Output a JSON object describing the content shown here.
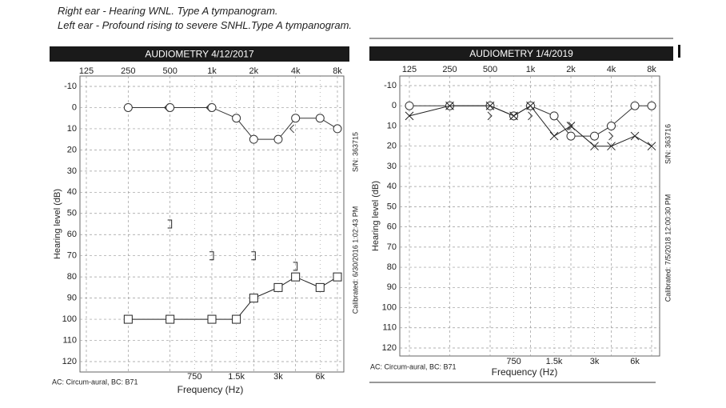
{
  "header": {
    "lines": [
      "Right ear - Hearing WNL. Type A tympanogram.",
      "Left ear - Profound rising to severe SNHL.Type A tympanogram."
    ]
  },
  "chart_data": [
    {
      "type": "line",
      "title": "AUDIOMETRY 4/12/2017",
      "x_label": "Frequency (Hz)",
      "y_label": "Hearing level (dB)",
      "footnote": "AC: Circum-aural, BC: B71",
      "serial": "S/N: 363715",
      "calibration": "Calibrated: 6/30/2016 1:02:43 PM",
      "xscale": "log",
      "xlim": [
        125,
        8000
      ],
      "ylim": [
        -10,
        120
      ],
      "y_inverted": true,
      "grid": true,
      "xticks": [
        125,
        250,
        500,
        {
          "value": 1000,
          "label": "1k"
        },
        {
          "value": 2000,
          "label": "2k"
        },
        {
          "value": 4000,
          "label": "4k"
        },
        {
          "value": 8000,
          "label": "8k"
        }
      ],
      "xticks_minor": [
        750,
        {
          "value": 1500,
          "label": "1.5k"
        },
        {
          "value": 3000,
          "label": "3k"
        },
        {
          "value": 6000,
          "label": "6k"
        }
      ],
      "yticks": [
        -10,
        0,
        10,
        20,
        30,
        40,
        50,
        60,
        70,
        80,
        90,
        100,
        110,
        120
      ],
      "series": [
        {
          "marker": "circle",
          "line": true,
          "color": "#333",
          "x": [
            250,
            500,
            1000,
            1500,
            2000,
            3000,
            4000,
            6000,
            8000
          ],
          "values": [
            0,
            0,
            0,
            5,
            15,
            15,
            5,
            5,
            10
          ]
        },
        {
          "marker": "square",
          "line": true,
          "color": "#222",
          "x": [
            250,
            500,
            1000,
            1500,
            2000,
            3000,
            4000,
            6000,
            8000
          ],
          "values": [
            100,
            100,
            100,
            100,
            90,
            85,
            80,
            85,
            80
          ]
        },
        {
          "marker": "bracket-right",
          "line": false,
          "color": "#222",
          "x": [
            500,
            1000,
            2000,
            4000
          ],
          "values": [
            55,
            70,
            70,
            75
          ]
        },
        {
          "marker": "angle-left",
          "line": false,
          "color": "#333",
          "x": [
            500,
            1000,
            4000
          ],
          "values": [
            0,
            0,
            10
          ]
        }
      ]
    },
    {
      "type": "line",
      "title": "AUDIOMETRY 1/4/2019",
      "x_label": "Frequency (Hz)",
      "y_label": "Hearing level (dB)",
      "footnote": "AC: Circum-aural, BC: B71",
      "serial": "S/N: 363716",
      "calibration": "Calibrated: 7/5/2018 12:00:30 PM",
      "xscale": "log",
      "xlim": [
        125,
        8000
      ],
      "ylim": [
        -10,
        120
      ],
      "y_inverted": true,
      "grid": true,
      "xticks": [
        125,
        250,
        500,
        {
          "value": 1000,
          "label": "1k"
        },
        {
          "value": 2000,
          "label": "2k"
        },
        {
          "value": 4000,
          "label": "4k"
        },
        {
          "value": 8000,
          "label": "8k"
        }
      ],
      "xticks_minor": [
        750,
        {
          "value": 1500,
          "label": "1.5k"
        },
        {
          "value": 3000,
          "label": "3k"
        },
        {
          "value": 6000,
          "label": "6k"
        }
      ],
      "yticks": [
        -10,
        0,
        10,
        20,
        30,
        40,
        50,
        60,
        70,
        80,
        90,
        100,
        110,
        120
      ],
      "series": [
        {
          "marker": "circle",
          "line": true,
          "color": "#333",
          "x": [
            125,
            250,
            500,
            750,
            1000,
            1500,
            2000,
            3000,
            4000,
            6000,
            8000
          ],
          "values": [
            0,
            0,
            0,
            5,
            0,
            5,
            15,
            15,
            10,
            0,
            0
          ]
        },
        {
          "marker": "cross",
          "line": true,
          "color": "#222",
          "x": [
            125,
            250,
            500,
            750,
            1000,
            1500,
            2000,
            3000,
            4000,
            6000,
            8000
          ],
          "values": [
            5,
            0,
            0,
            5,
            0,
            15,
            10,
            20,
            20,
            15,
            20
          ]
        },
        {
          "marker": "angle-right",
          "line": false,
          "color": "#333",
          "x": [
            500,
            1000,
            2000,
            4000
          ],
          "values": [
            5,
            5,
            10,
            15
          ]
        }
      ]
    }
  ]
}
